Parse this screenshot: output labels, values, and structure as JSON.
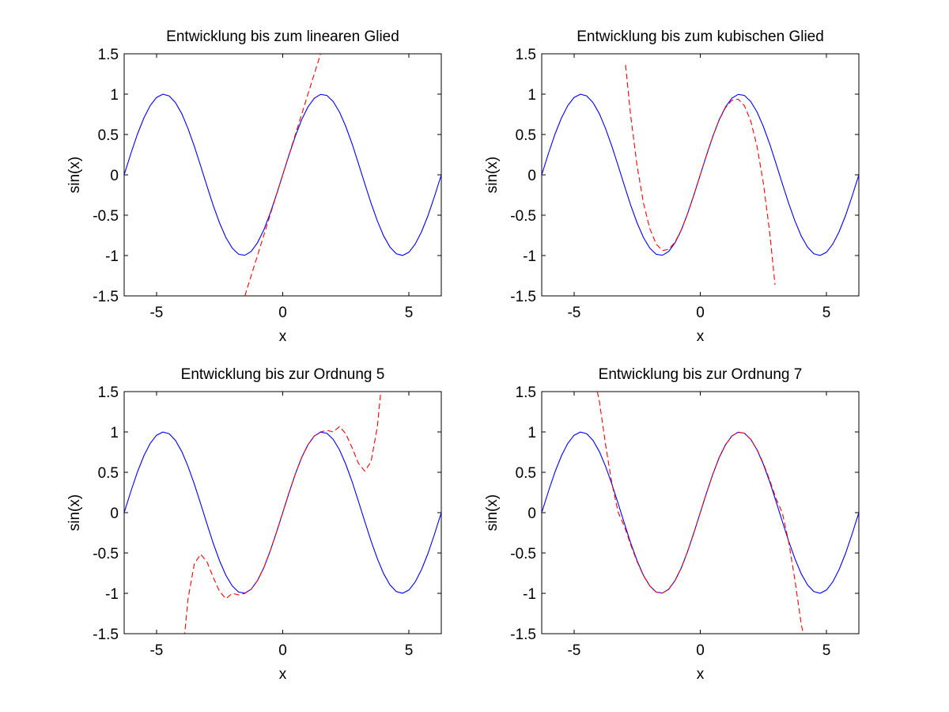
{
  "chart_data": [
    {
      "type": "line",
      "title": "Entwicklung bis zum linearen Glied",
      "xlabel": "x",
      "ylabel": "sin(x)",
      "xlim": [
        -6.2832,
        6.2832
      ],
      "ylim": [
        -1.5,
        1.5
      ],
      "xticks": [
        -5,
        0,
        5
      ],
      "xtick_labels": [
        "-5",
        "0",
        "5"
      ],
      "yticks": [
        -1.5,
        -1,
        -0.5,
        0,
        0.5,
        1,
        1.5
      ],
      "ytick_labels": [
        "-1.5",
        "-1",
        "-0.5",
        "0",
        "0.5",
        "1",
        "1.5"
      ],
      "grid": false,
      "series": [
        {
          "color": "#0000ff",
          "style": "solid",
          "x": [
            -6.2832,
            -6.0,
            -5.75,
            -5.5,
            -5.25,
            -5.0,
            -4.75,
            -4.5,
            -4.25,
            -4.0,
            -3.75,
            -3.5,
            -3.25,
            -3.0,
            -2.75,
            -2.5,
            -2.25,
            -2.0,
            -1.75,
            -1.5,
            -1.25,
            -1.0,
            -0.75,
            -0.5,
            -0.25,
            0.0,
            0.25,
            0.5,
            0.75,
            1.0,
            1.25,
            1.5,
            1.75,
            2.0,
            2.25,
            2.5,
            2.75,
            3.0,
            3.25,
            3.5,
            3.75,
            4.0,
            4.25,
            4.5,
            4.75,
            5.0,
            5.25,
            5.5,
            5.75,
            6.0,
            6.2832
          ],
          "y": [
            0.0,
            0.279,
            0.51,
            0.706,
            0.859,
            0.959,
            0.999,
            0.978,
            0.895,
            0.757,
            0.572,
            0.351,
            0.108,
            -0.141,
            -0.382,
            -0.598,
            -0.778,
            -0.909,
            -0.984,
            -0.997,
            -0.949,
            -0.841,
            -0.682,
            -0.479,
            -0.247,
            0.0,
            0.247,
            0.479,
            0.682,
            0.841,
            0.949,
            0.997,
            0.984,
            0.909,
            0.778,
            0.598,
            0.382,
            0.141,
            -0.108,
            -0.351,
            -0.572,
            -0.757,
            -0.895,
            -0.978,
            -0.999,
            -0.959,
            -0.859,
            -0.706,
            -0.51,
            -0.279,
            0.0
          ]
        },
        {
          "color": "#ff0000",
          "style": "dashed",
          "x": [
            -1.5,
            -1.0,
            -0.5,
            0.0,
            0.5,
            1.0,
            1.5
          ],
          "y": [
            -1.5,
            -1.0,
            -0.5,
            0.0,
            0.5,
            1.0,
            1.5
          ]
        }
      ]
    },
    {
      "type": "line",
      "title": "Entwicklung bis zum kubischen Glied",
      "xlabel": "x",
      "ylabel": "sin(x)",
      "xlim": [
        -6.2832,
        6.2832
      ],
      "ylim": [
        -1.5,
        1.5
      ],
      "xticks": [
        -5,
        0,
        5
      ],
      "xtick_labels": [
        "-5",
        "0",
        "5"
      ],
      "yticks": [
        -1.5,
        -1,
        -0.5,
        0,
        0.5,
        1,
        1.5
      ],
      "ytick_labels": [
        "-1.5",
        "-1",
        "-0.5",
        "0",
        "0.5",
        "1",
        "1.5"
      ],
      "grid": false,
      "series": [
        {
          "color": "#0000ff",
          "style": "solid",
          "x": [
            -6.2832,
            -6.0,
            -5.75,
            -5.5,
            -5.25,
            -5.0,
            -4.75,
            -4.5,
            -4.25,
            -4.0,
            -3.75,
            -3.5,
            -3.25,
            -3.0,
            -2.75,
            -2.5,
            -2.25,
            -2.0,
            -1.75,
            -1.5,
            -1.25,
            -1.0,
            -0.75,
            -0.5,
            -0.25,
            0.0,
            0.25,
            0.5,
            0.75,
            1.0,
            1.25,
            1.5,
            1.75,
            2.0,
            2.25,
            2.5,
            2.75,
            3.0,
            3.25,
            3.5,
            3.75,
            4.0,
            4.25,
            4.5,
            4.75,
            5.0,
            5.25,
            5.5,
            5.75,
            6.0,
            6.2832
          ],
          "y": [
            0.0,
            0.279,
            0.51,
            0.706,
            0.859,
            0.959,
            0.999,
            0.978,
            0.895,
            0.757,
            0.572,
            0.351,
            0.108,
            -0.141,
            -0.382,
            -0.598,
            -0.778,
            -0.909,
            -0.984,
            -0.997,
            -0.949,
            -0.841,
            -0.682,
            -0.479,
            -0.247,
            0.0,
            0.247,
            0.479,
            0.682,
            0.841,
            0.949,
            0.997,
            0.984,
            0.909,
            0.778,
            0.598,
            0.382,
            0.141,
            -0.108,
            -0.351,
            -0.572,
            -0.757,
            -0.895,
            -0.978,
            -0.999,
            -0.959,
            -0.859,
            -0.706,
            -0.51,
            -0.279,
            0.0
          ]
        },
        {
          "color": "#ff0000",
          "style": "dashed",
          "x": [
            -2.96,
            -2.75,
            -2.5,
            -2.25,
            -2.0,
            -1.75,
            -1.5,
            -1.25,
            -1.0,
            -0.75,
            -0.5,
            -0.25,
            0.0,
            0.25,
            0.5,
            0.75,
            1.0,
            1.25,
            1.5,
            1.75,
            2.0,
            2.25,
            2.5,
            2.75,
            2.96
          ],
          "y": [
            1.362,
            0.716,
            0.104,
            -0.352,
            -0.667,
            -0.857,
            -0.938,
            -0.924,
            -0.833,
            -0.68,
            -0.479,
            -0.247,
            0.0,
            0.247,
            0.479,
            0.68,
            0.833,
            0.924,
            0.938,
            0.857,
            0.667,
            0.352,
            -0.104,
            -0.716,
            -1.362
          ]
        }
      ]
    },
    {
      "type": "line",
      "title": "Entwicklung bis zur Ordnung 5",
      "xlabel": "x",
      "ylabel": "sin(x)",
      "xlim": [
        -6.2832,
        6.2832
      ],
      "ylim": [
        -1.5,
        1.5
      ],
      "xticks": [
        -5,
        0,
        5
      ],
      "xtick_labels": [
        "-5",
        "0",
        "5"
      ],
      "yticks": [
        -1.5,
        -1,
        -0.5,
        0,
        0.5,
        1,
        1.5
      ],
      "ytick_labels": [
        "-1.5",
        "-1",
        "-0.5",
        "0",
        "0.5",
        "1",
        "1.5"
      ],
      "grid": false,
      "series": [
        {
          "color": "#0000ff",
          "style": "solid",
          "x": [
            -6.2832,
            -6.0,
            -5.75,
            -5.5,
            -5.25,
            -5.0,
            -4.75,
            -4.5,
            -4.25,
            -4.0,
            -3.75,
            -3.5,
            -3.25,
            -3.0,
            -2.75,
            -2.5,
            -2.25,
            -2.0,
            -1.75,
            -1.5,
            -1.25,
            -1.0,
            -0.75,
            -0.5,
            -0.25,
            0.0,
            0.25,
            0.5,
            0.75,
            1.0,
            1.25,
            1.5,
            1.75,
            2.0,
            2.25,
            2.5,
            2.75,
            3.0,
            3.25,
            3.5,
            3.75,
            4.0,
            4.25,
            4.5,
            4.75,
            5.0,
            5.25,
            5.5,
            5.75,
            6.0,
            6.2832
          ],
          "y": [
            0.0,
            0.279,
            0.51,
            0.706,
            0.859,
            0.959,
            0.999,
            0.978,
            0.895,
            0.757,
            0.572,
            0.351,
            0.108,
            -0.141,
            -0.382,
            -0.598,
            -0.778,
            -0.909,
            -0.984,
            -0.997,
            -0.949,
            -0.841,
            -0.682,
            -0.479,
            -0.247,
            0.0,
            0.247,
            0.479,
            0.682,
            0.841,
            0.949,
            0.997,
            0.984,
            0.909,
            0.778,
            0.598,
            0.382,
            0.141,
            -0.108,
            -0.351,
            -0.572,
            -0.757,
            -0.895,
            -0.978,
            -0.999,
            -0.959,
            -0.859,
            -0.706,
            -0.51,
            -0.279,
            0.0
          ]
        },
        {
          "color": "#ff0000",
          "style": "dashed",
          "x": [
            -3.9,
            -3.75,
            -3.5,
            -3.25,
            -3.0,
            -2.75,
            -2.5,
            -2.25,
            -2.0,
            -1.75,
            -1.5,
            -1.25,
            -1.0,
            -0.75,
            -0.5,
            -0.25,
            0.0,
            0.25,
            0.5,
            0.75,
            1.0,
            1.25,
            1.5,
            1.75,
            2.0,
            2.25,
            2.5,
            2.75,
            3.0,
            3.25,
            3.5,
            3.75,
            3.9
          ],
          "y": [
            -1.552,
            -1.067,
            -0.631,
            -0.516,
            -0.612,
            -0.803,
            -0.977,
            -1.067,
            -1.0,
            -1.02,
            -1.001,
            -0.949,
            -0.842,
            -0.682,
            -0.479,
            -0.247,
            0.0,
            0.247,
            0.479,
            0.682,
            0.842,
            0.949,
            1.001,
            1.02,
            1.0,
            1.067,
            0.977,
            0.803,
            0.612,
            0.516,
            0.631,
            1.067,
            1.552
          ]
        }
      ]
    },
    {
      "type": "line",
      "title": "Entwicklung bis zur Ordnung 7",
      "xlabel": "x",
      "ylabel": "sin(x)",
      "xlim": [
        -6.2832,
        6.2832
      ],
      "ylim": [
        -1.5,
        1.5
      ],
      "xticks": [
        -5,
        0,
        5
      ],
      "xtick_labels": [
        "-5",
        "0",
        "5"
      ],
      "yticks": [
        -1.5,
        -1,
        -0.5,
        0,
        0.5,
        1,
        1.5
      ],
      "ytick_labels": [
        "-1.5",
        "-1",
        "-0.5",
        "0",
        "0.5",
        "1",
        "1.5"
      ],
      "grid": false,
      "series": [
        {
          "color": "#0000ff",
          "style": "solid",
          "x": [
            -6.2832,
            -6.0,
            -5.75,
            -5.5,
            -5.25,
            -5.0,
            -4.75,
            -4.5,
            -4.25,
            -4.0,
            -3.75,
            -3.5,
            -3.25,
            -3.0,
            -2.75,
            -2.5,
            -2.25,
            -2.0,
            -1.75,
            -1.5,
            -1.25,
            -1.0,
            -0.75,
            -0.5,
            -0.25,
            0.0,
            0.25,
            0.5,
            0.75,
            1.0,
            1.25,
            1.5,
            1.75,
            2.0,
            2.25,
            2.5,
            2.75,
            3.0,
            3.25,
            3.5,
            3.75,
            4.0,
            4.25,
            4.5,
            4.75,
            5.0,
            5.25,
            5.5,
            5.75,
            6.0,
            6.2832
          ],
          "y": [
            0.0,
            0.279,
            0.51,
            0.706,
            0.859,
            0.959,
            0.999,
            0.978,
            0.895,
            0.757,
            0.572,
            0.351,
            0.108,
            -0.141,
            -0.382,
            -0.598,
            -0.778,
            -0.909,
            -0.984,
            -0.997,
            -0.949,
            -0.841,
            -0.682,
            -0.479,
            -0.247,
            0.0,
            0.247,
            0.479,
            0.682,
            0.841,
            0.949,
            0.997,
            0.984,
            0.909,
            0.778,
            0.598,
            0.382,
            0.141,
            -0.108,
            -0.351,
            -0.572,
            -0.757,
            -0.895,
            -0.978,
            -0.999,
            -0.959,
            -0.859,
            -0.706,
            -0.51,
            -0.279,
            0.0
          ]
        },
        {
          "color": "#ff0000",
          "style": "dashed",
          "x": [
            -4.08,
            -4.0,
            -3.75,
            -3.5,
            -3.25,
            -3.0,
            -2.75,
            -2.5,
            -2.25,
            -2.0,
            -1.75,
            -1.5,
            -1.25,
            -1.0,
            -0.75,
            -0.5,
            -0.25,
            0.0,
            0.25,
            0.5,
            0.75,
            1.0,
            1.25,
            1.5,
            1.75,
            2.0,
            2.25,
            2.5,
            2.75,
            3.0,
            3.25,
            3.5,
            3.75,
            4.0,
            4.08
          ],
          "y": [
            1.5,
            1.379,
            0.838,
            0.358,
            0.001,
            -0.176,
            -0.403,
            -0.609,
            -0.781,
            -0.909,
            -0.984,
            -0.997,
            -0.949,
            -0.841,
            -0.682,
            -0.479,
            -0.247,
            0.0,
            0.247,
            0.479,
            0.682,
            0.841,
            0.949,
            0.997,
            0.984,
            0.909,
            0.781,
            0.609,
            0.403,
            0.176,
            -0.001,
            -0.358,
            -0.838,
            -1.379,
            -1.5
          ]
        }
      ]
    }
  ]
}
